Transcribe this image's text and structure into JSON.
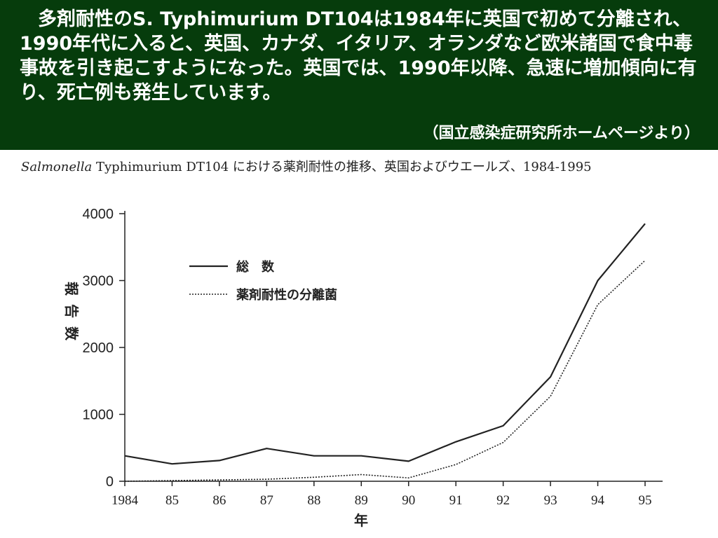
{
  "header": {
    "text": "多剤耐性のS. Typhimurium DT104は1984年に英国で初めて分離され、1990年代に入ると、英国、カナダ、イタリア、オランダなど欧米諸国で食中毒事故を引き起こすようになった。英国では、1990年以降、急速に増加傾向に有り、死亡例も発生しています。",
    "source": "（国立感染症研究所ホームページより）"
  },
  "colors": {
    "header_bg": "#063c0c",
    "header_text": "#ffffff",
    "line": "#222222"
  },
  "chart_data": {
    "type": "line",
    "title_italic": "Salmonella",
    "title_rest": " Typhimurium DT104 における薬剤耐性の推移、英国およびウエールズ、1984-1995",
    "categories": [
      "1984",
      "85",
      "86",
      "87",
      "88",
      "89",
      "90",
      "91",
      "92",
      "93",
      "94",
      "95"
    ],
    "x": [
      1984,
      1985,
      1986,
      1987,
      1988,
      1989,
      1990,
      1991,
      1992,
      1993,
      1994,
      1995
    ],
    "series": [
      {
        "name": "総　数",
        "style": "solid",
        "values": [
          380,
          260,
          310,
          490,
          380,
          380,
          300,
          590,
          830,
          1560,
          3000,
          3850
        ]
      },
      {
        "name": "薬剤耐性の分離菌",
        "style": "dotted",
        "values": [
          0,
          10,
          20,
          30,
          60,
          100,
          50,
          250,
          580,
          1270,
          2640,
          3300
        ]
      }
    ],
    "ylabel": "報告数",
    "xlabel": "年",
    "yticks": [
      0,
      1000,
      2000,
      3000,
      4000
    ],
    "ylim": [
      0,
      4000
    ],
    "legend_position": "top-left",
    "grid": false
  }
}
